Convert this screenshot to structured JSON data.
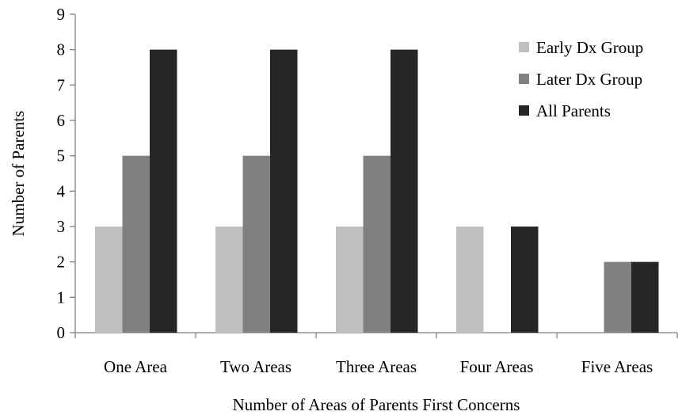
{
  "chart_data": {
    "type": "bar",
    "title": "",
    "xlabel": "Number of Areas of Parents First Concerns",
    "ylabel": "Number of Parents",
    "ylim": [
      0,
      9
    ],
    "yticks": [
      0,
      1,
      2,
      3,
      4,
      5,
      6,
      7,
      8,
      9
    ],
    "grid": false,
    "legend_position": "top-right",
    "categories": [
      "One Area",
      "Two Areas",
      "Three Areas",
      "Four Areas",
      "Five Areas"
    ],
    "series": [
      {
        "name": "Early Dx Group",
        "color": "#c0c0c0",
        "values": [
          3,
          3,
          3,
          3,
          0
        ]
      },
      {
        "name": "Later Dx Group",
        "color": "#808080",
        "values": [
          5,
          5,
          5,
          0,
          2
        ]
      },
      {
        "name": "All Parents",
        "color": "#262626",
        "values": [
          8,
          8,
          8,
          3,
          2
        ]
      }
    ]
  }
}
